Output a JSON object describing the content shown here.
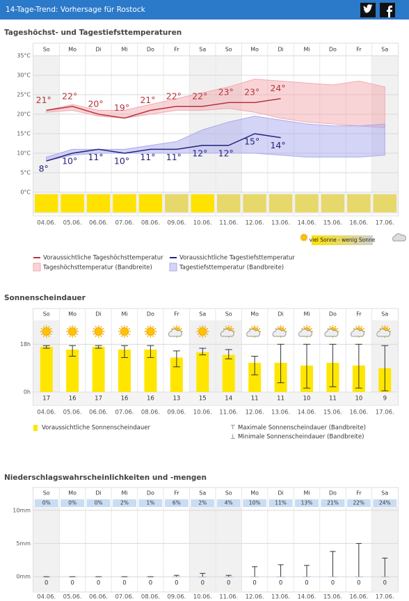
{
  "header": {
    "title": "14-Tage-Trend: Vorhersage für Rostock"
  },
  "chart_data": [
    {
      "type": "line",
      "title": "Tageshöchst- und Tagestiefsttemperaturen",
      "weekdays": [
        "So",
        "Mo",
        "Di",
        "Mi",
        "Do",
        "Fr",
        "Sa",
        "So",
        "Mo",
        "Di",
        "Mi",
        "Do",
        "Fr",
        "Sa"
      ],
      "categories": [
        "04.06.",
        "05.06.",
        "06.06.",
        "07.06.",
        "08.06.",
        "09.06.",
        "10.06.",
        "11.06.",
        "12.06.",
        "13.06.",
        "14.06.",
        "15.06.",
        "16.06.",
        "17.06."
      ],
      "ylim": [
        0,
        35
      ],
      "yticks": [
        {
          "value": 0,
          "label": "0°C"
        },
        {
          "value": 5,
          "label": "5°C"
        },
        {
          "value": 10,
          "label": "10°C"
        },
        {
          "value": 15,
          "label": "15°C"
        },
        {
          "value": 20,
          "label": "20°C"
        },
        {
          "value": 25,
          "label": "25°C"
        },
        {
          "value": 30,
          "label": "30°C"
        },
        {
          "value": 35,
          "label": "35°C"
        }
      ],
      "grid": true,
      "series": [
        {
          "name": "Voraussichtliche Tageshöchsttemperatur",
          "color": "#b5343c",
          "values": [
            21,
            22,
            20,
            19,
            21,
            22,
            22,
            23,
            23,
            24,
            null,
            null,
            null,
            null
          ],
          "value_labels": [
            "21°",
            "22°",
            "20°",
            "19°",
            "21°",
            "22°",
            "22°",
            "23°",
            "23°",
            "24°",
            null,
            null,
            null,
            null
          ]
        },
        {
          "name": "Voraussichtliche Tagestiefsttemperatur",
          "color": "#23237e",
          "values": [
            8,
            10,
            11,
            10,
            11,
            11,
            12,
            12,
            15,
            14,
            null,
            null,
            null,
            null
          ],
          "value_labels": [
            "8°",
            "10°",
            "11°",
            "10°",
            "11°",
            "11°",
            "12°",
            "12°",
            "15°",
            "14°",
            null,
            null,
            null,
            null
          ]
        }
      ],
      "bands": [
        {
          "name": "Tageshöchsttemperatur (Bandbreite)",
          "color": "#f3a9b0",
          "upper": [
            21,
            22.5,
            21,
            21,
            22.5,
            24,
            25.5,
            27,
            29,
            28.5,
            28,
            27.5,
            28.5,
            27
          ],
          "lower": [
            20.5,
            21,
            19.5,
            19,
            20,
            21,
            21,
            21.5,
            20.5,
            19,
            18,
            17.5,
            17,
            16.5
          ]
        },
        {
          "name": "Tagestiefsttemperatur (Bandbreite)",
          "color": "#aaaaee",
          "upper": [
            9,
            11,
            11,
            11,
            12,
            13,
            16,
            18,
            19.5,
            18.5,
            17.5,
            17,
            17,
            17.5
          ],
          "lower": [
            8,
            9.5,
            10,
            10,
            10,
            10,
            10,
            10,
            10,
            9.5,
            9,
            9,
            9,
            9.5
          ]
        }
      ],
      "sun_colors": [
        "#ffe200",
        "#ffe200",
        "#ffe200",
        "#ffe200",
        "#ffe200",
        "#e6d86a",
        "#ffe200",
        "#e6d86a",
        "#e6d86a",
        "#e6d86a",
        "#e6d86a",
        "#e6d86a",
        "#e6d86a",
        "#e6d86a"
      ],
      "sun_legend": "viel Sonne - wenig Sonne"
    },
    {
      "type": "bar",
      "title": "Sonnenscheindauer",
      "weekdays": [
        "So",
        "Mo",
        "Di",
        "Mi",
        "Do",
        "Fr",
        "Sa",
        "So",
        "Mo",
        "Di",
        "Mi",
        "Do",
        "Fr",
        "Sa"
      ],
      "categories": [
        "04.06.",
        "05.06.",
        "06.06.",
        "07.06.",
        "08.06.",
        "09.06.",
        "10.06.",
        "11.06.",
        "12.06.",
        "13.06.",
        "14.06.",
        "15.06.",
        "16.06.",
        "17.06."
      ],
      "ylim": [
        0,
        27
      ],
      "yticks": [
        {
          "value": 0,
          "label": "0h"
        },
        {
          "value": 18,
          "label": "18h"
        }
      ],
      "grid": true,
      "series": [
        {
          "name": "Voraussichtliche Sonnenscheindauer",
          "color": "#ffe600",
          "values": [
            17,
            16,
            17,
            16,
            16,
            13,
            15,
            14,
            11,
            11,
            10,
            11,
            10,
            9
          ]
        }
      ],
      "error_bars": {
        "max_name": "Maximale Sonnenscheindauer (Bandbreite)",
        "min_name": "Minimale Sonnenscheindauer (Bandbreite)",
        "max": [
          17.5,
          17.5,
          17.5,
          17.5,
          17.5,
          15.5,
          16.5,
          16,
          13.5,
          18,
          18,
          18,
          18,
          17.5
        ],
        "min": [
          16.5,
          13.5,
          16.5,
          13,
          13,
          9.5,
          14,
          12.5,
          6.5,
          3.5,
          1.5,
          2,
          1.5,
          0.5
        ]
      }
    },
    {
      "type": "precipitation",
      "title": "Niederschlagswahrscheinlichkeiten und -mengen",
      "weekdays": [
        "So",
        "Mo",
        "Di",
        "Mi",
        "Do",
        "Fr",
        "Sa",
        "So",
        "Mo",
        "Di",
        "Mi",
        "Do",
        "Fr",
        "Sa"
      ],
      "categories": [
        "04.06.",
        "05.06.",
        "06.06.",
        "07.06.",
        "08.06.",
        "09.06.",
        "10.06.",
        "11.06.",
        "12.06.",
        "13.06.",
        "14.06.",
        "15.06.",
        "16.06.",
        "17.06."
      ],
      "ylim": [
        -2.3,
        10.5
      ],
      "yticks": [
        {
          "value": 0,
          "label": "0mm"
        },
        {
          "value": 5,
          "label": "5mm"
        },
        {
          "value": 10,
          "label": "10mm"
        }
      ],
      "grid": true,
      "values": [
        0,
        0,
        0,
        0,
        0,
        0,
        0,
        0,
        0,
        0,
        0,
        0,
        0,
        0
      ],
      "max": [
        0,
        0,
        0,
        0,
        0,
        0.2,
        0.5,
        0.2,
        1.5,
        1.8,
        1.7,
        3.8,
        5,
        2.8
      ],
      "probabilities": [
        0,
        0,
        0,
        2,
        1,
        6,
        2,
        4,
        10,
        11,
        13,
        21,
        22,
        24
      ],
      "probability_labels": [
        "0%",
        "0%",
        "0%",
        "2%",
        "1%",
        "6%",
        "2%",
        "4%",
        "10%",
        "11%",
        "13%",
        "21%",
        "22%",
        "24%"
      ]
    }
  ]
}
